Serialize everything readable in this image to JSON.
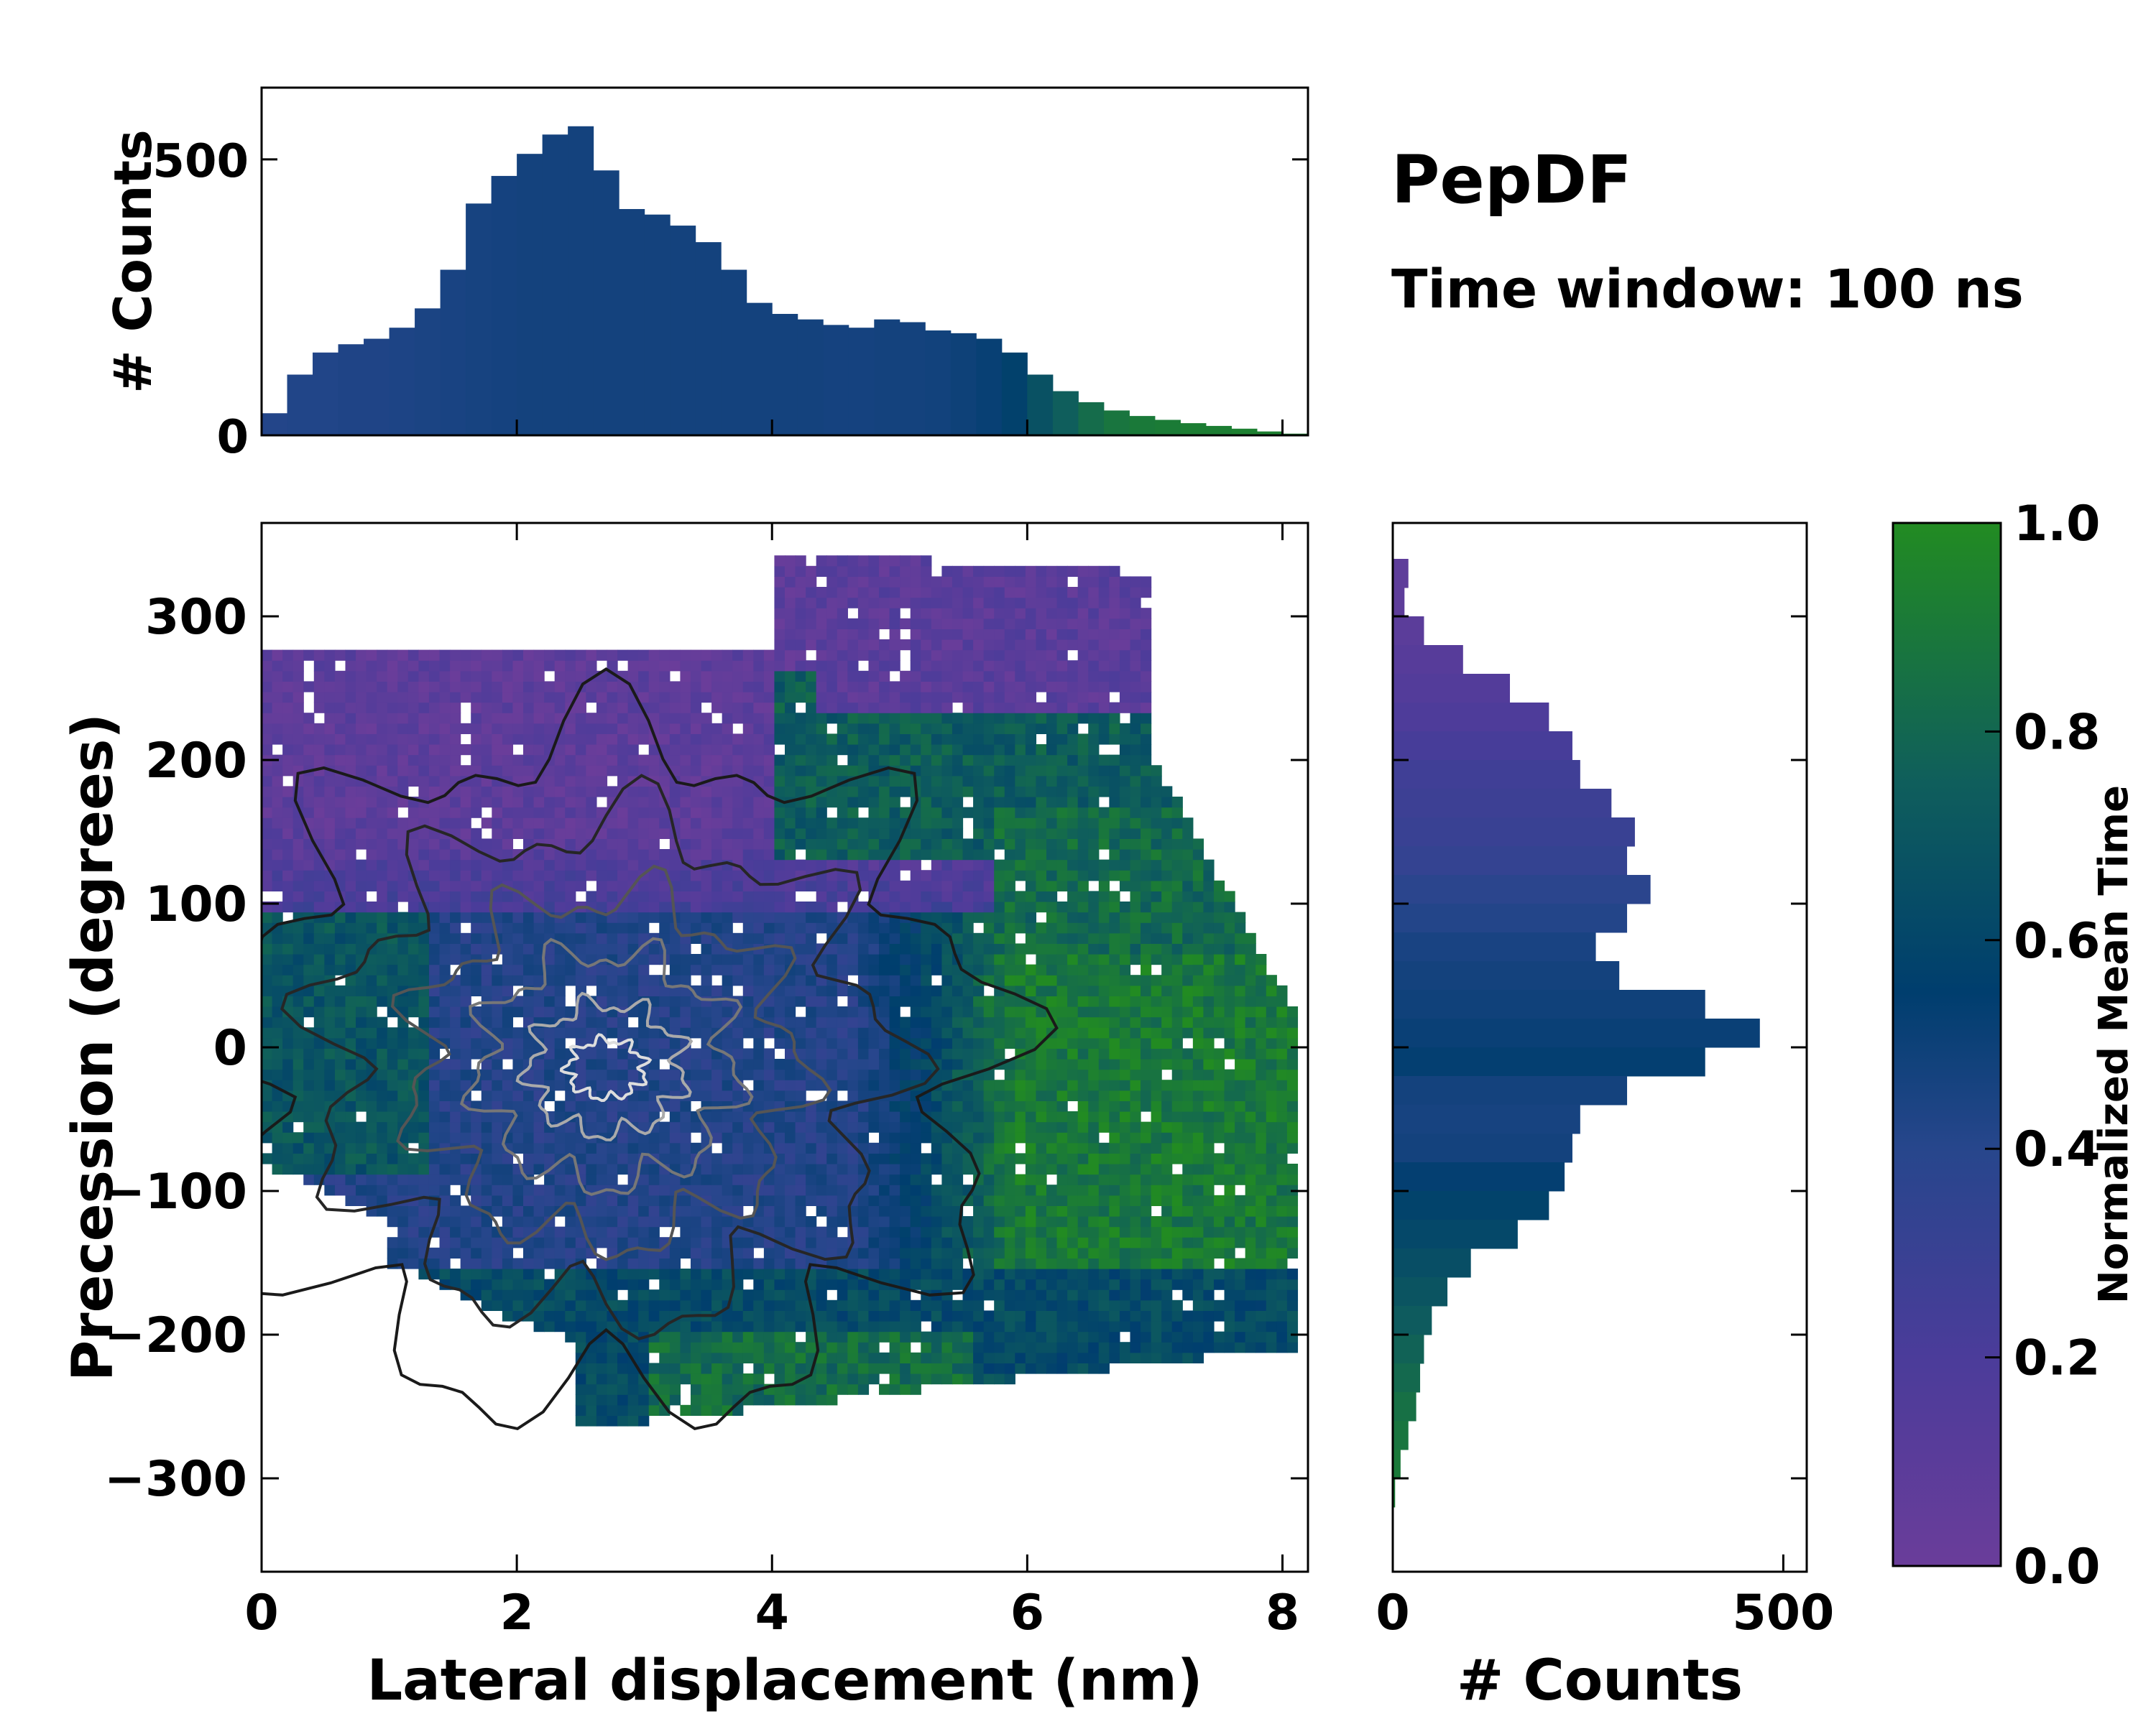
{
  "chart_data": [
    {
      "id": "main",
      "type": "heatmap",
      "title": "PepDF",
      "subtitle": "Time window: 100 ns",
      "xlabel": "Lateral displacement (nm)",
      "ylabel": "Precession (degrees)",
      "xlim": [
        0,
        8.2
      ],
      "ylim": [
        -365,
        365
      ],
      "xticks": [
        0,
        2,
        4,
        6,
        8
      ],
      "xtick_labels": [
        "0",
        "2",
        "4",
        "6",
        "8"
      ],
      "yticks": [
        -300,
        -200,
        -100,
        0,
        100,
        200,
        300
      ],
      "ytick_labels": [
        "−300",
        "−200",
        "−100",
        "0",
        "100",
        "200",
        "300"
      ],
      "color_meaning": "Normalized Mean Time",
      "regions": [
        {
          "label": "upper purple region (early time)",
          "x_range": [
            0,
            4.5
          ],
          "y_range": [
            100,
            280
          ],
          "value": 0.1
        },
        {
          "label": "upper-right purple band",
          "x_range": [
            4,
            7
          ],
          "y_range": [
            140,
            340
          ],
          "value": 0.12
        },
        {
          "label": "central blue region",
          "x_range": [
            1,
            5.5
          ],
          "y_range": [
            -150,
            100
          ],
          "value": 0.45
        },
        {
          "label": "left green band",
          "x_range": [
            0,
            1.5
          ],
          "y_range": [
            -80,
            80
          ],
          "value": 0.75
        },
        {
          "label": "right green region (late time)",
          "x_range": [
            4.5,
            8.2
          ],
          "y_range": [
            -200,
            200
          ],
          "value": 0.9
        },
        {
          "label": "lower teal region",
          "x_range": [
            1,
            7.8
          ],
          "y_range": [
            -290,
            -150
          ],
          "value": 0.72
        }
      ],
      "density_peak": {
        "x": 2.7,
        "y": -15
      }
    },
    {
      "id": "top-histogram",
      "type": "bar",
      "ylabel": "# Counts",
      "xlim": [
        0,
        8.2
      ],
      "ylim": [
        0,
        630
      ],
      "yticks": [
        0,
        500
      ],
      "ytick_labels": [
        "0",
        "500"
      ],
      "x": [
        0.1,
        0.3,
        0.5,
        0.7,
        0.9,
        1.1,
        1.3,
        1.5,
        1.7,
        1.9,
        2.1,
        2.3,
        2.5,
        2.7,
        2.9,
        3.1,
        3.3,
        3.5,
        3.7,
        3.9,
        4.1,
        4.3,
        4.5,
        4.7,
        4.9,
        5.1,
        5.3,
        5.5,
        5.7,
        5.9,
        6.1,
        6.3,
        6.5,
        6.7,
        6.9,
        7.1,
        7.3,
        7.5,
        7.7,
        7.9,
        8.1
      ],
      "values": [
        40,
        110,
        150,
        165,
        175,
        195,
        230,
        300,
        420,
        470,
        510,
        545,
        560,
        480,
        410,
        400,
        380,
        350,
        300,
        240,
        220,
        210,
        200,
        195,
        210,
        205,
        190,
        185,
        175,
        150,
        110,
        80,
        60,
        45,
        35,
        28,
        22,
        17,
        12,
        7,
        3
      ],
      "color_time": [
        0.42,
        0.43,
        0.43,
        0.44,
        0.44,
        0.45,
        0.46,
        0.47,
        0.48,
        0.49,
        0.5,
        0.5,
        0.5,
        0.5,
        0.5,
        0.5,
        0.5,
        0.5,
        0.5,
        0.5,
        0.5,
        0.5,
        0.49,
        0.49,
        0.5,
        0.5,
        0.51,
        0.53,
        0.56,
        0.62,
        0.72,
        0.8,
        0.86,
        0.9,
        0.92,
        0.93,
        0.94,
        0.94,
        0.95,
        0.95,
        0.95
      ]
    },
    {
      "id": "right-histogram",
      "type": "bar",
      "orientation": "horizontal",
      "xlabel": "# Counts",
      "xlim": [
        0,
        530
      ],
      "xticks": [
        0,
        500
      ],
      "xtick_labels": [
        "0",
        "500"
      ],
      "ylim": [
        -365,
        365
      ],
      "y": [
        330,
        310,
        290,
        270,
        250,
        230,
        210,
        190,
        170,
        150,
        130,
        110,
        90,
        70,
        50,
        30,
        10,
        -10,
        -30,
        -50,
        -70,
        -90,
        -110,
        -130,
        -150,
        -170,
        -190,
        -210,
        -230,
        -250,
        -270,
        -290,
        -310
      ],
      "values": [
        20,
        15,
        40,
        90,
        150,
        200,
        230,
        240,
        280,
        310,
        300,
        330,
        300,
        260,
        290,
        400,
        470,
        400,
        300,
        240,
        230,
        220,
        200,
        160,
        100,
        70,
        50,
        40,
        35,
        30,
        20,
        10,
        3
      ],
      "color_time": [
        0.08,
        0.08,
        0.1,
        0.12,
        0.15,
        0.18,
        0.22,
        0.26,
        0.28,
        0.3,
        0.33,
        0.38,
        0.42,
        0.47,
        0.5,
        0.52,
        0.55,
        0.58,
        0.5,
        0.48,
        0.5,
        0.58,
        0.63,
        0.66,
        0.7,
        0.74,
        0.78,
        0.82,
        0.85,
        0.88,
        0.9,
        0.92,
        0.93
      ]
    },
    {
      "id": "colorbar",
      "type": "colorbar",
      "label": "Normalized Mean Time",
      "range": [
        0.0,
        1.0
      ],
      "ticks": [
        0.0,
        0.2,
        0.4,
        0.6,
        0.8,
        1.0
      ],
      "tick_labels": [
        "0.0",
        "0.2",
        "0.4",
        "0.6",
        "0.8",
        "1.0"
      ],
      "colormap_stops": [
        "#6a3d9a",
        "#4b3c9a",
        "#27468c",
        "#003e6e",
        "#0f5e5c",
        "#228b22"
      ]
    }
  ]
}
